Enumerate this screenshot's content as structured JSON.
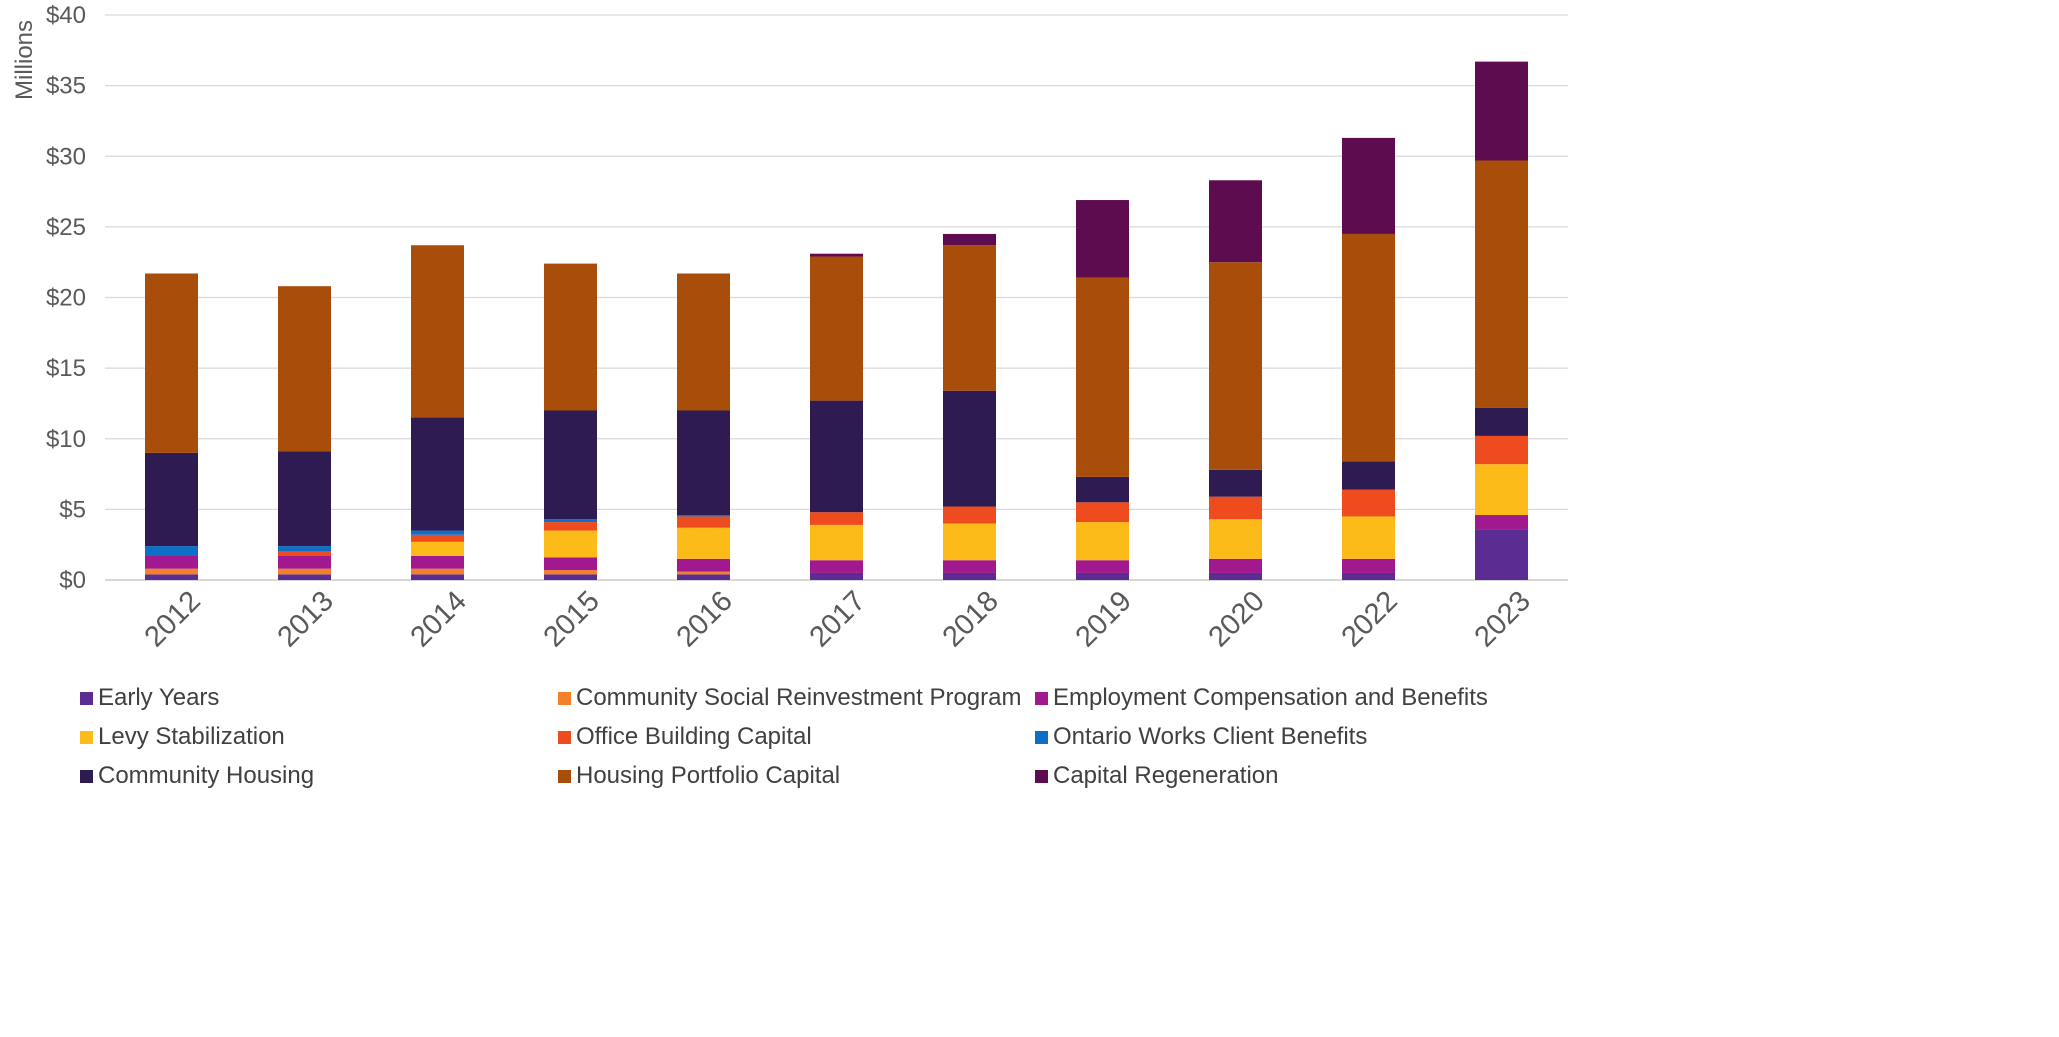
{
  "chart_data": {
    "type": "bar",
    "stacked": true,
    "ylabel": "Millions",
    "ylim": [
      0,
      40
    ],
    "yticks": [
      "$0",
      "$5",
      "$10",
      "$15",
      "$20",
      "$25",
      "$30",
      "$35",
      "$40"
    ],
    "ytick_values": [
      0,
      5,
      10,
      15,
      20,
      25,
      30,
      35,
      40
    ],
    "categories": [
      "2012",
      "2013",
      "2014",
      "2015",
      "2016",
      "2017",
      "2018",
      "2019",
      "2020",
      "2022",
      "2023"
    ],
    "grid": true,
    "legend_position": "bottom",
    "series": [
      {
        "name": "Early Years",
        "color": "#5B2C91",
        "values": [
          0.4,
          0.4,
          0.4,
          0.4,
          0.4,
          0.5,
          0.5,
          0.5,
          0.5,
          0.5,
          3.6
        ]
      },
      {
        "name": "Community Social Reinvestment Program",
        "color": "#F4802A",
        "values": [
          0.4,
          0.4,
          0.4,
          0.3,
          0.2,
          0,
          0,
          0,
          0,
          0,
          0
        ]
      },
      {
        "name": "Employment Compensation and Benefits",
        "color": "#A0198F",
        "values": [
          0.9,
          0.9,
          0.9,
          0.9,
          0.9,
          0.9,
          0.9,
          0.9,
          1.0,
          1.0,
          1.0
        ]
      },
      {
        "name": "Levy Stabilization",
        "color": "#FDBB1A",
        "values": [
          0,
          0,
          1.0,
          1.9,
          2.2,
          2.5,
          2.6,
          2.7,
          2.8,
          3.0,
          3.6
        ]
      },
      {
        "name": "Office Building Capital",
        "color": "#EE4B1E",
        "values": [
          0,
          0.3,
          0.5,
          0.6,
          0.8,
          0.9,
          1.2,
          1.4,
          1.6,
          1.9,
          2.0
        ]
      },
      {
        "name": "Ontario Works Client Benefits",
        "color": "#0F6FC6",
        "values": [
          0.7,
          0.4,
          0.3,
          0.2,
          0.1,
          0,
          0,
          0,
          0,
          0,
          0
        ]
      },
      {
        "name": "Community Housing",
        "color": "#2E1B52",
        "values": [
          6.6,
          6.7,
          8.0,
          7.7,
          7.4,
          7.9,
          8.2,
          1.8,
          1.9,
          2.0,
          2.0
        ]
      },
      {
        "name": "Housing Portfolio Capital",
        "color": "#A84D0A",
        "values": [
          12.7,
          11.7,
          12.2,
          10.4,
          9.7,
          10.2,
          10.3,
          14.1,
          14.7,
          16.1,
          17.5
        ]
      },
      {
        "name": "Capital Regeneration",
        "color": "#5C0C4F",
        "values": [
          0,
          0,
          0,
          0,
          0,
          0.2,
          0.8,
          5.5,
          5.8,
          6.8,
          7.0
        ]
      }
    ]
  }
}
